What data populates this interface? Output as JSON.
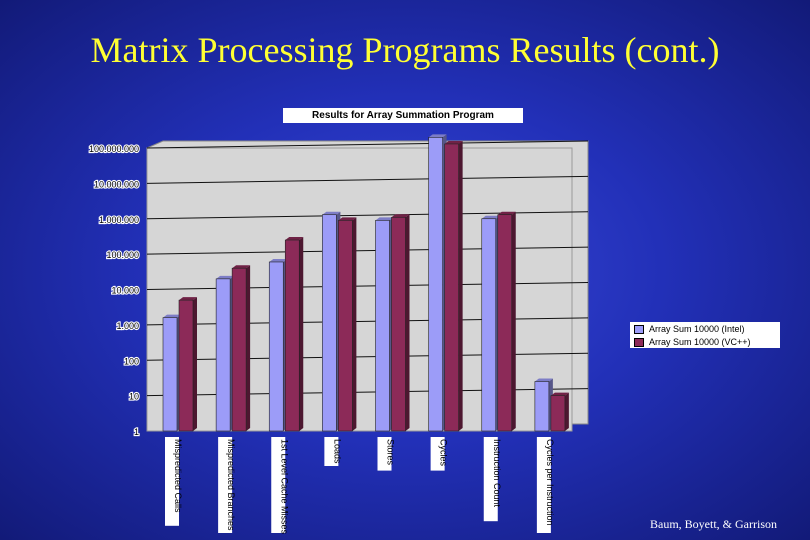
{
  "slide": {
    "title": "Matrix Processing Programs Results (cont.)",
    "footer": "Baum, Boyett, & Garrison"
  },
  "colors": {
    "intel": "#9c9cf8",
    "vc": "#8c2a58",
    "plot_bg": "#d6d6d6"
  },
  "chart_data": {
    "type": "bar",
    "title": "Results for Array Summation Program",
    "y_scale": "log",
    "ylim": [
      1,
      100000000
    ],
    "y_ticks": [
      "1",
      "10",
      "100",
      "1.000",
      "10.000",
      "100.000",
      "1.000.000",
      "10.000.000",
      "100.000.000"
    ],
    "grid": true,
    "legend_position": "right",
    "categories": [
      "Mispredicted Calls",
      "Mispredicted Branches",
      "1st Level Cache Misses",
      "Loads",
      "Stores",
      "Cycles",
      "Instruction Count",
      "Cycles per Instruction"
    ],
    "series": [
      {
        "name": "Array Sum 10000 (Intel)",
        "values": [
          1600,
          20000,
          60000,
          1300000,
          900000,
          200000000,
          1000000,
          25
        ]
      },
      {
        "name": "Array Sum 10000 (VC++)",
        "values": [
          5000,
          40000,
          250000,
          900000,
          1100000,
          130000000,
          1300000,
          10
        ]
      }
    ]
  }
}
